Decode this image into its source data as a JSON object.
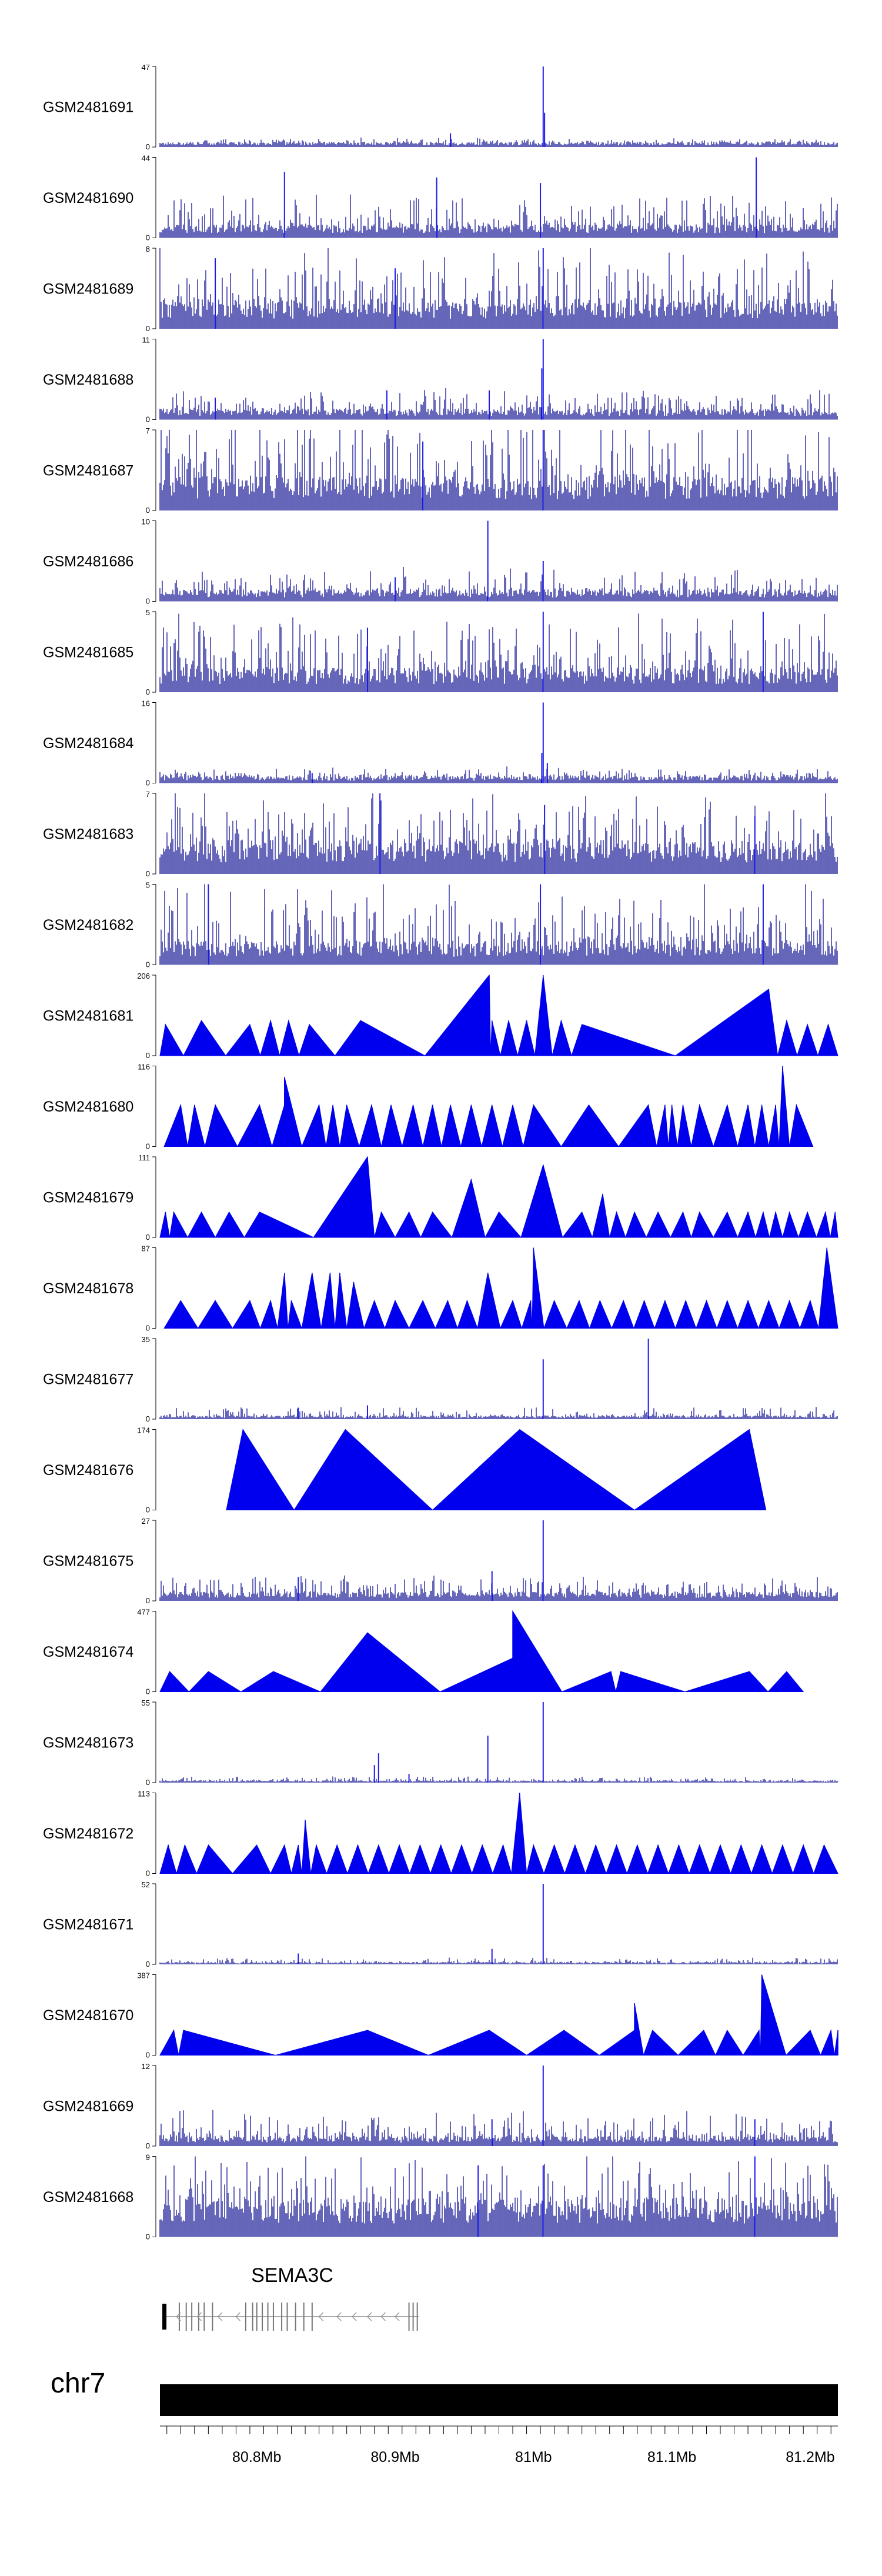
{
  "chart_data": {
    "type": "area",
    "title": "",
    "xlabel": "",
    "ylabel": "",
    "chromosome": "chr7",
    "x_range": [
      80.73,
      81.22
    ],
    "x_unit": "Mb",
    "x_ticks": [
      {
        "value": 80.8,
        "label": "80.8Mb"
      },
      {
        "value": 80.9,
        "label": "80.9Mb"
      },
      {
        "value": 81.0,
        "label": "81Mb"
      },
      {
        "value": 81.1,
        "label": "81.1Mb"
      },
      {
        "value": 81.2,
        "label": "81.2Mb"
      }
    ],
    "gene": {
      "name": "SEMA3C",
      "start": 80.733,
      "end": 80.917,
      "strand": "-"
    },
    "tracks": [
      {
        "name": "GSM2481691",
        "ymax": 47,
        "kind": "signal",
        "base": 2,
        "noise": 3,
        "peaks": [
          [
            81.007,
            47
          ],
          [
            81.008,
            20
          ],
          [
            80.94,
            8
          ]
        ]
      },
      {
        "name": "GSM2481690",
        "ymax": 44,
        "kind": "signal",
        "base": 5,
        "noise": 18,
        "peaks": [
          [
            81.005,
            30
          ],
          [
            81.161,
            44
          ],
          [
            80.93,
            33
          ],
          [
            80.82,
            36
          ]
        ]
      },
      {
        "name": "GSM2481689",
        "ymax": 8,
        "kind": "signal",
        "base": 2,
        "noise": 6,
        "peaks": [
          [
            81.007,
            8
          ],
          [
            80.9,
            6
          ],
          [
            80.77,
            7
          ]
        ]
      },
      {
        "name": "GSM2481688",
        "ymax": 11,
        "kind": "signal",
        "base": 1,
        "noise": 3,
        "peaks": [
          [
            81.007,
            11
          ],
          [
            81.006,
            7
          ],
          [
            80.894,
            4
          ],
          [
            80.968,
            4
          ],
          [
            80.77,
            3
          ]
        ]
      },
      {
        "name": "GSM2481687",
        "ymax": 7,
        "kind": "signal",
        "base": 2,
        "noise": 6,
        "peaks": [
          [
            81.007,
            7
          ],
          [
            80.92,
            6
          ]
        ]
      },
      {
        "name": "GSM2481686",
        "ymax": 10,
        "kind": "signal",
        "base": 1,
        "noise": 3,
        "peaks": [
          [
            80.967,
            10
          ],
          [
            81.007,
            5
          ],
          [
            80.9,
            3
          ]
        ]
      },
      {
        "name": "GSM2481685",
        "ymax": 5,
        "kind": "signal",
        "base": 1,
        "noise": 4,
        "peaks": [
          [
            81.007,
            5
          ],
          [
            81.166,
            5
          ],
          [
            80.88,
            4
          ]
        ]
      },
      {
        "name": "GSM2481684",
        "ymax": 16,
        "kind": "signal",
        "base": 1,
        "noise": 2,
        "peaks": [
          [
            81.007,
            16
          ],
          [
            81.006,
            6
          ],
          [
            81.01,
            4
          ],
          [
            80.84,
            2
          ]
        ]
      },
      {
        "name": "GSM2481683",
        "ymax": 7,
        "kind": "signal",
        "base": 2,
        "noise": 5,
        "peaks": [
          [
            80.889,
            7
          ],
          [
            81.008,
            6
          ],
          [
            81.16,
            5
          ]
        ]
      },
      {
        "name": "GSM2481682",
        "ymax": 5,
        "kind": "signal",
        "base": 1,
        "noise": 4,
        "peaks": [
          [
            81.166,
            5
          ],
          [
            80.765,
            5
          ],
          [
            81.005,
            5
          ]
        ]
      },
      {
        "name": "GSM2481681",
        "ymax": 206,
        "kind": "triangles",
        "peaks": [
          [
            80.734,
            80
          ],
          [
            80.76,
            90
          ],
          [
            80.795,
            80
          ],
          [
            80.81,
            90
          ],
          [
            80.823,
            90
          ],
          [
            80.838,
            80
          ],
          [
            80.875,
            90
          ],
          [
            80.97,
            90
          ],
          [
            80.968,
            206
          ],
          [
            80.982,
            90
          ],
          [
            80.995,
            90
          ],
          [
            81.007,
            206
          ],
          [
            81.02,
            90
          ],
          [
            81.035,
            80
          ],
          [
            81.17,
            170
          ],
          [
            81.183,
            90
          ],
          [
            81.198,
            80
          ],
          [
            81.213,
            80
          ]
        ]
      },
      {
        "name": "GSM2481680",
        "ymax": 116,
        "kind": "triangles",
        "peaks": [
          [
            80.745,
            60
          ],
          [
            80.755,
            60
          ],
          [
            80.77,
            60
          ],
          [
            80.802,
            60
          ],
          [
            80.82,
            60
          ],
          [
            80.82,
            100
          ],
          [
            80.845,
            60
          ],
          [
            80.855,
            60
          ],
          [
            80.865,
            60
          ],
          [
            80.883,
            60
          ],
          [
            80.897,
            60
          ],
          [
            80.913,
            60
          ],
          [
            80.927,
            60
          ],
          [
            80.94,
            60
          ],
          [
            80.955,
            60
          ],
          [
            80.97,
            60
          ],
          [
            80.985,
            60
          ],
          [
            81.0,
            60
          ],
          [
            81.04,
            60
          ],
          [
            81.083,
            60
          ],
          [
            81.095,
            60
          ],
          [
            81.1,
            60
          ],
          [
            81.108,
            60
          ],
          [
            81.12,
            60
          ],
          [
            81.14,
            60
          ],
          [
            81.155,
            60
          ],
          [
            81.165,
            60
          ],
          [
            81.175,
            60
          ],
          [
            81.18,
            116
          ],
          [
            81.19,
            60
          ]
        ]
      },
      {
        "name": "GSM2481679",
        "ymax": 111,
        "kind": "triangles",
        "peaks": [
          [
            80.734,
            35
          ],
          [
            80.74,
            35
          ],
          [
            80.76,
            35
          ],
          [
            80.78,
            35
          ],
          [
            80.802,
            35
          ],
          [
            80.88,
            111
          ],
          [
            80.89,
            35
          ],
          [
            80.91,
            35
          ],
          [
            80.927,
            35
          ],
          [
            80.955,
            80
          ],
          [
            80.975,
            35
          ],
          [
            81.007,
            100
          ],
          [
            81.035,
            35
          ],
          [
            81.05,
            60
          ],
          [
            81.06,
            35
          ],
          [
            81.073,
            35
          ],
          [
            81.09,
            35
          ],
          [
            81.108,
            35
          ],
          [
            81.12,
            35
          ],
          [
            81.14,
            35
          ],
          [
            81.155,
            35
          ],
          [
            81.166,
            35
          ],
          [
            81.175,
            35
          ],
          [
            81.185,
            35
          ],
          [
            81.198,
            35
          ],
          [
            81.211,
            35
          ],
          [
            81.218,
            35
          ]
        ]
      },
      {
        "name": "GSM2481678",
        "ymax": 87,
        "kind": "triangles",
        "peaks": [
          [
            80.745,
            30
          ],
          [
            80.77,
            30
          ],
          [
            80.795,
            30
          ],
          [
            80.81,
            30
          ],
          [
            80.82,
            60
          ],
          [
            80.825,
            30
          ],
          [
            80.84,
            60
          ],
          [
            80.853,
            60
          ],
          [
            80.86,
            60
          ],
          [
            80.87,
            50
          ],
          [
            80.885,
            30
          ],
          [
            80.9,
            30
          ],
          [
            80.92,
            30
          ],
          [
            80.938,
            30
          ],
          [
            80.952,
            30
          ],
          [
            80.967,
            60
          ],
          [
            80.985,
            30
          ],
          [
            80.998,
            30
          ],
          [
            81.0,
            87
          ],
          [
            81.015,
            30
          ],
          [
            81.033,
            30
          ],
          [
            81.048,
            30
          ],
          [
            81.065,
            30
          ],
          [
            81.08,
            30
          ],
          [
            81.095,
            30
          ],
          [
            81.11,
            30
          ],
          [
            81.125,
            30
          ],
          [
            81.14,
            30
          ],
          [
            81.155,
            30
          ],
          [
            81.17,
            30
          ],
          [
            81.185,
            30
          ],
          [
            81.2,
            30
          ],
          [
            81.212,
            87
          ]
        ]
      },
      {
        "name": "GSM2481677",
        "ymax": 35,
        "kind": "signal",
        "base": 1,
        "noise": 4,
        "peaks": [
          [
            81.083,
            35
          ],
          [
            81.007,
            26
          ],
          [
            80.88,
            6
          ],
          [
            80.83,
            5
          ]
        ]
      },
      {
        "name": "GSM2481676",
        "ymax": 174,
        "kind": "triangles",
        "peaks": [
          [
            80.79,
            174
          ],
          [
            80.864,
            174
          ],
          [
            80.99,
            174
          ],
          [
            81.156,
            174
          ]
        ]
      },
      {
        "name": "GSM2481675",
        "ymax": 27,
        "kind": "signal",
        "base": 2,
        "noise": 6,
        "peaks": [
          [
            81.007,
            27
          ],
          [
            80.97,
            10
          ],
          [
            80.83,
            8
          ]
        ]
      },
      {
        "name": "GSM2481674",
        "ymax": 477,
        "kind": "triangles",
        "peaks": [
          [
            80.737,
            120
          ],
          [
            80.765,
            120
          ],
          [
            80.812,
            120
          ],
          [
            80.88,
            350
          ],
          [
            80.985,
            200
          ],
          [
            80.985,
            477
          ],
          [
            81.056,
            120
          ],
          [
            81.063,
            120
          ],
          [
            81.156,
            120
          ],
          [
            81.183,
            120
          ]
        ]
      },
      {
        "name": "GSM2481673",
        "ymax": 55,
        "kind": "signal",
        "base": 1,
        "noise": 3,
        "peaks": [
          [
            81.007,
            55
          ],
          [
            80.967,
            32
          ],
          [
            80.888,
            20
          ],
          [
            80.885,
            12
          ],
          [
            80.91,
            6
          ]
        ]
      },
      {
        "name": "GSM2481672",
        "ymax": 113,
        "kind": "triangles",
        "peaks": [
          [
            80.736,
            40
          ],
          [
            80.748,
            40
          ],
          [
            80.765,
            40
          ],
          [
            80.8,
            40
          ],
          [
            80.82,
            40
          ],
          [
            80.83,
            40
          ],
          [
            80.835,
            75
          ],
          [
            80.843,
            40
          ],
          [
            80.858,
            40
          ],
          [
            80.873,
            40
          ],
          [
            80.888,
            40
          ],
          [
            80.903,
            40
          ],
          [
            80.918,
            40
          ],
          [
            80.933,
            40
          ],
          [
            80.948,
            40
          ],
          [
            80.963,
            40
          ],
          [
            80.978,
            40
          ],
          [
            80.99,
            113
          ],
          [
            81.0,
            40
          ],
          [
            81.015,
            40
          ],
          [
            81.03,
            40
          ],
          [
            81.045,
            40
          ],
          [
            81.06,
            40
          ],
          [
            81.075,
            40
          ],
          [
            81.09,
            40
          ],
          [
            81.105,
            40
          ],
          [
            81.12,
            40
          ],
          [
            81.135,
            40
          ],
          [
            81.15,
            40
          ],
          [
            81.165,
            40
          ],
          [
            81.18,
            40
          ],
          [
            81.195,
            40
          ],
          [
            81.21,
            40
          ]
        ]
      },
      {
        "name": "GSM2481671",
        "ymax": 52,
        "kind": "signal",
        "base": 1,
        "noise": 3,
        "peaks": [
          [
            81.007,
            52
          ],
          [
            80.97,
            10
          ],
          [
            80.83,
            7
          ]
        ]
      },
      {
        "name": "GSM2481670",
        "ymax": 387,
        "kind": "triangles",
        "peaks": [
          [
            80.74,
            120
          ],
          [
            80.747,
            120
          ],
          [
            80.88,
            120
          ],
          [
            80.968,
            120
          ],
          [
            81.022,
            120
          ],
          [
            81.073,
            120
          ],
          [
            81.073,
            250
          ],
          [
            81.086,
            120
          ],
          [
            81.123,
            120
          ],
          [
            81.14,
            120
          ],
          [
            81.163,
            120
          ],
          [
            81.165,
            387
          ],
          [
            81.2,
            120
          ],
          [
            81.215,
            120
          ],
          [
            81.22,
            120
          ]
        ]
      },
      {
        "name": "GSM2481669",
        "ymax": 12,
        "kind": "signal",
        "base": 1,
        "noise": 4,
        "peaks": [
          [
            81.007,
            12
          ],
          [
            80.97,
            4
          ],
          [
            81.16,
            4
          ]
        ]
      },
      {
        "name": "GSM2481668",
        "ymax": 9,
        "kind": "signal",
        "base": 3,
        "noise": 6,
        "peaks": [
          [
            81.16,
            9
          ],
          [
            80.96,
            8
          ],
          [
            81.007,
            8
          ]
        ]
      }
    ]
  }
}
